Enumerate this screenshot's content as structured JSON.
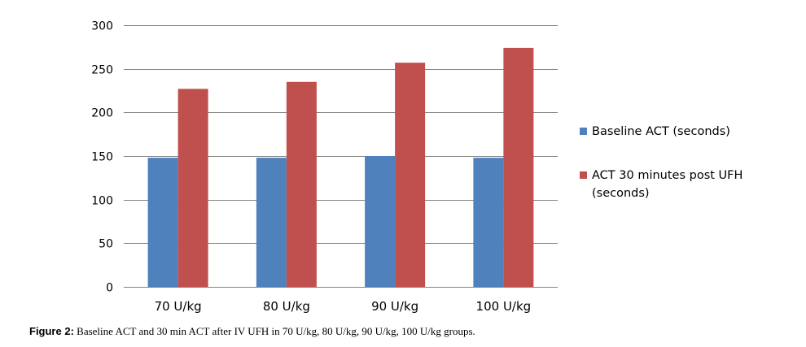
{
  "chart_data": {
    "type": "bar",
    "categories": [
      "70 U/kg",
      "80 U/kg",
      "90 U/kg",
      "100 U/kg"
    ],
    "series": [
      {
        "name": "Baseline ACT (seconds)",
        "color": "#4F81BD",
        "values": [
          148,
          148,
          150,
          148
        ]
      },
      {
        "name": "ACT 30 minutes post UFH (seconds)",
        "legend_lines": [
          "ACT 30 minutes post UFH",
          "(seconds)"
        ],
        "color": "#C0504D",
        "values": [
          227,
          235,
          257,
          274
        ]
      }
    ],
    "ylim": [
      0,
      300
    ],
    "yticks": [
      0,
      50,
      100,
      150,
      200,
      250,
      300
    ],
    "ytick_labels": [
      "0",
      "50",
      "100",
      "150",
      "200",
      "250",
      "300"
    ],
    "grid": true,
    "legend_position": "right"
  },
  "caption": {
    "label": "Figure 2:",
    "text": " Baseline ACT and 30 min ACT after IV UFH in 70 U/kg, 80 U/kg, 90 U/kg, 100 U/kg groups."
  }
}
